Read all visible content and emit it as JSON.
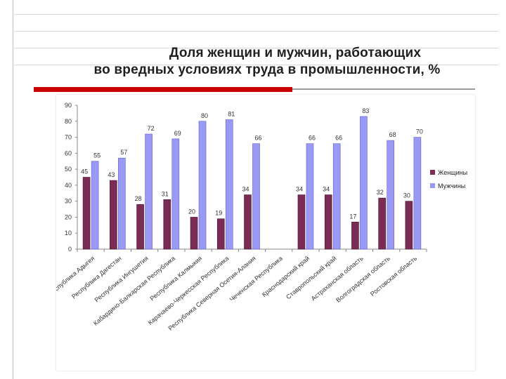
{
  "slide": {
    "title_line1": "Доля женщин и мужчин, работающих",
    "title_line2": "во вредных условиях труда в промышленности, %",
    "accent_color": "#cc0000"
  },
  "chart_data": {
    "type": "bar",
    "categories": [
      "Республика Адыгея",
      "Республика Дагестан",
      "Республика Ингушетия",
      "Кабардино-Балкарская Республика",
      "Республика Калмыкия",
      "Карачаево-Черкесская Республика",
      "Республика Северная Осетия-Алания",
      "Чеченская Республика",
      "Краснодарский край",
      "Ставропольский край",
      "Астраханская область",
      "Волгоградская область",
      "Ростовская область"
    ],
    "series": [
      {
        "name": "Женщины",
        "color": "#7b2c55",
        "values": [
          45,
          43,
          28,
          31,
          20,
          19,
          34,
          null,
          34,
          34,
          17,
          32,
          30
        ]
      },
      {
        "name": "Мужчины",
        "color": "#9a9af5",
        "values": [
          55,
          57,
          72,
          69,
          80,
          81,
          66,
          null,
          66,
          66,
          83,
          68,
          70
        ]
      }
    ],
    "ylim": [
      0,
      90
    ],
    "yticks": [
      0,
      10,
      20,
      30,
      40,
      50,
      60,
      70,
      80,
      90
    ],
    "grid": false,
    "legend_position": "right"
  }
}
